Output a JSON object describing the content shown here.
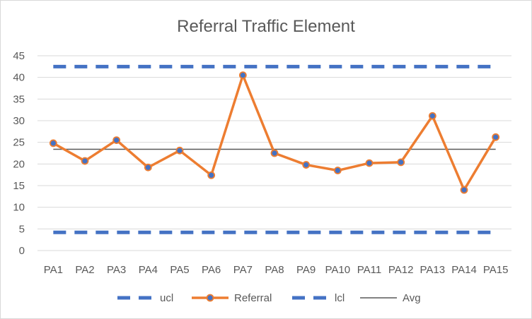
{
  "chart_data": {
    "type": "line",
    "title": "Referral Traffic Element",
    "xlabel": "",
    "ylabel": "",
    "categories": [
      "PA1",
      "PA2",
      "PA3",
      "PA4",
      "PA5",
      "PA6",
      "PA7",
      "PA8",
      "PA9",
      "PA10",
      "PA11",
      "PA12",
      "PA13",
      "PA14",
      "PA15"
    ],
    "ylim": [
      0,
      45
    ],
    "yticks": [
      "0",
      "5",
      "10",
      "15",
      "20",
      "25",
      "30",
      "35",
      "40",
      "45"
    ],
    "grid": true,
    "legend_position": "bottom",
    "series": [
      {
        "name": "ucl",
        "color": "#4472C4",
        "style": "dashed",
        "values": [
          42.5,
          42.5,
          42.5,
          42.5,
          42.5,
          42.5,
          42.5,
          42.5,
          42.5,
          42.5,
          42.5,
          42.5,
          42.5,
          42.5,
          42.5
        ]
      },
      {
        "name": "Referral",
        "color": "#ED7D31",
        "marker_fill": "#4472C4",
        "style": "solid-markers",
        "values": [
          24.8,
          20.7,
          25.5,
          19.2,
          23.1,
          17.4,
          40.5,
          22.5,
          19.8,
          18.5,
          20.2,
          20.4,
          31.1,
          14.0,
          26.2
        ]
      },
      {
        "name": "lcl",
        "color": "#4472C4",
        "style": "dashed",
        "values": [
          4.2,
          4.2,
          4.2,
          4.2,
          4.2,
          4.2,
          4.2,
          4.2,
          4.2,
          4.2,
          4.2,
          4.2,
          4.2,
          4.2,
          4.2
        ]
      },
      {
        "name": "Avg",
        "color": "#595959",
        "style": "thin",
        "values": [
          23.4,
          23.4,
          23.4,
          23.4,
          23.4,
          23.4,
          23.4,
          23.4,
          23.4,
          23.4,
          23.4,
          23.4,
          23.4,
          23.4,
          23.4
        ]
      }
    ]
  }
}
